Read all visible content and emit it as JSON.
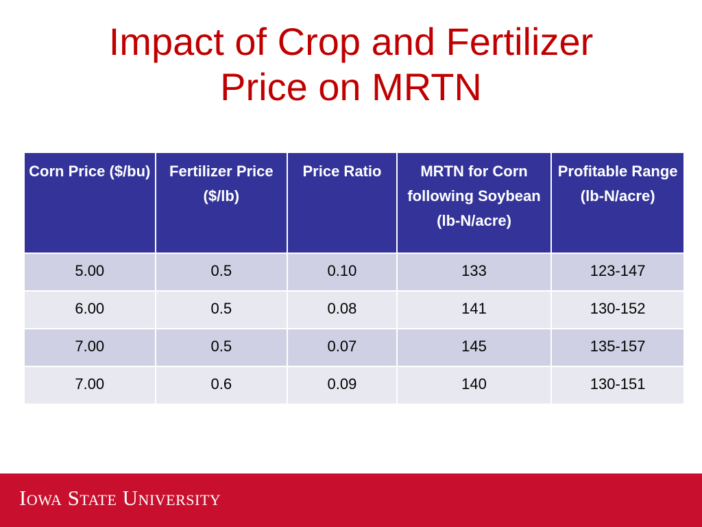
{
  "slide": {
    "title_line1": "Impact of Crop and Fertilizer",
    "title_line2": "Price on MRTN"
  },
  "table": {
    "headers": [
      "Corn Price ($/bu)",
      "Fertilizer Price ($/lb)",
      "Price Ratio",
      "MRTN  for Corn following Soybean (lb-N/acre)",
      "Profitable Range (lb-N/acre)"
    ],
    "rows": [
      [
        "5.00",
        "0.5",
        "0.10",
        "133",
        "123-147"
      ],
      [
        "6.00",
        "0.5",
        "0.08",
        "141",
        "130-152"
      ],
      [
        "7.00",
        "0.5",
        "0.07",
        "145",
        "135-157"
      ],
      [
        "7.00",
        "0.6",
        "0.09",
        "140",
        "130-151"
      ]
    ]
  },
  "footer": {
    "logo_text": "Iowa State University"
  },
  "colors": {
    "title": "#c00000",
    "header_bg": "#333399",
    "row_odd_bg": "#cfd0e3",
    "row_even_bg": "#e8e8f0",
    "footer_bg": "#c8102e"
  }
}
